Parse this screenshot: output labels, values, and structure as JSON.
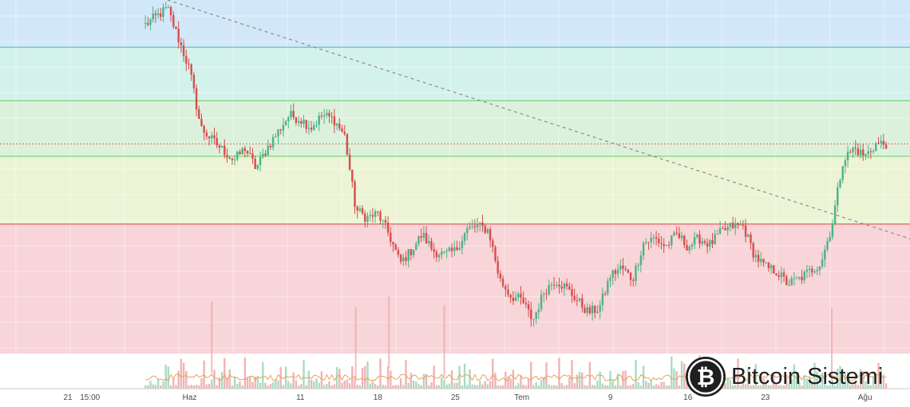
{
  "chart_data": {
    "type": "candlestick",
    "x_tick_labels": [
      "21",
      "15:00",
      "Haz",
      "11",
      "18",
      "25",
      "Tem",
      "9",
      "16",
      "23",
      "Ağu"
    ],
    "y_range": [
      5500,
      14100
    ],
    "zones": [
      {
        "from": 12950,
        "to": 14100,
        "color": "#d2e8f8"
      },
      {
        "from": 11650,
        "to": 12950,
        "color": "#d3f2ec"
      },
      {
        "from": 10300,
        "to": 11650,
        "color": "#dcf1dc"
      },
      {
        "from": 8650,
        "to": 10300,
        "color": "#edf4d6"
      },
      {
        "from": 5500,
        "to": 8650,
        "color": "#f8d5d8"
      }
    ],
    "levels": [
      {
        "value": 12950,
        "color": "#5fc6c3"
      },
      {
        "value": 11650,
        "color": "#6ccf6c"
      },
      {
        "value": 10300,
        "color": "#7ad27a"
      },
      {
        "value": 8650,
        "color": "#e46060"
      }
    ],
    "current_price_line": {
      "value": 10600,
      "color": "#d8604a"
    },
    "trendline": {
      "start": [
        "May 30",
        14100
      ],
      "end": [
        "Aug 9",
        7950
      ],
      "color": "#8c8c8c"
    },
    "up_color": "#4cb287",
    "down_color": "#d74c4c",
    "ohlc_path": [
      [
        "May 28",
        13500
      ],
      [
        "May 30",
        13900
      ],
      [
        "Jun 1",
        12400
      ],
      [
        "Jun 2",
        11000
      ],
      [
        "Jun 3",
        10700
      ],
      [
        "Jun 5",
        10200
      ],
      [
        "Jun 6",
        10500
      ],
      [
        "Jun 7",
        10000
      ],
      [
        "Jun 8",
        10500
      ],
      [
        "Jun 9",
        10900
      ],
      [
        "Jun 10",
        11300
      ],
      [
        "Jun 11",
        11200
      ],
      [
        "Jun 12",
        11000
      ],
      [
        "Jun 13",
        11300
      ],
      [
        "Jun 14",
        11200
      ],
      [
        "Jun 15",
        10800
      ],
      [
        "Jun 16",
        9000
      ],
      [
        "Jun 17",
        8800
      ],
      [
        "Jun 18",
        8900
      ],
      [
        "Jun 19",
        8400
      ],
      [
        "Jun 20",
        7700
      ],
      [
        "Jun 21",
        8000
      ],
      [
        "Jun 22",
        8400
      ],
      [
        "Jun 23",
        8000
      ],
      [
        "Jun 24",
        7900
      ],
      [
        "Jun 25",
        8000
      ],
      [
        "Jun 26",
        8500
      ],
      [
        "Jun 27",
        8600
      ],
      [
        "Jun 28",
        8500
      ],
      [
        "Jun 29",
        7300
      ],
      [
        "Jun 30",
        6900
      ],
      [
        "Jul 1",
        6800
      ],
      [
        "Jul 2",
        6300
      ],
      [
        "Jul 3",
        7000
      ],
      [
        "Jul 4",
        7300
      ],
      [
        "Jul 5",
        7100
      ],
      [
        "Jul 6",
        6800
      ],
      [
        "Jul 7",
        6500
      ],
      [
        "Jul 8",
        6600
      ],
      [
        "Jul 9",
        7400
      ],
      [
        "Jul 10",
        7600
      ],
      [
        "Jul 11",
        7300
      ],
      [
        "Jul 12",
        8200
      ],
      [
        "Jul 13",
        8300
      ],
      [
        "Jul 14",
        8100
      ],
      [
        "Jul 15",
        8400
      ],
      [
        "Jul 16",
        8100
      ],
      [
        "Jul 17",
        8300
      ],
      [
        "Jul 18",
        8150
      ],
      [
        "Jul 19",
        8450
      ],
      [
        "Jul 20",
        8600
      ],
      [
        "Jul 21",
        8600
      ],
      [
        "Jul 22",
        7900
      ],
      [
        "Jul 23",
        7600
      ],
      [
        "Jul 24",
        7500
      ],
      [
        "Jul 25",
        7200
      ],
      [
        "Jul 26",
        7300
      ],
      [
        "Jul 27",
        7500
      ],
      [
        "Jul 28",
        7700
      ],
      [
        "Jul 29",
        8600
      ],
      [
        "Jul 30",
        10200
      ],
      [
        "Jul 31",
        10500
      ],
      [
        "Aug 1",
        10300
      ],
      [
        "Aug 2",
        10600
      ],
      [
        "Aug 3",
        10600
      ]
    ]
  },
  "watermark": {
    "logo_symbol": "₿",
    "text": "Bitcoin Sistemi"
  }
}
